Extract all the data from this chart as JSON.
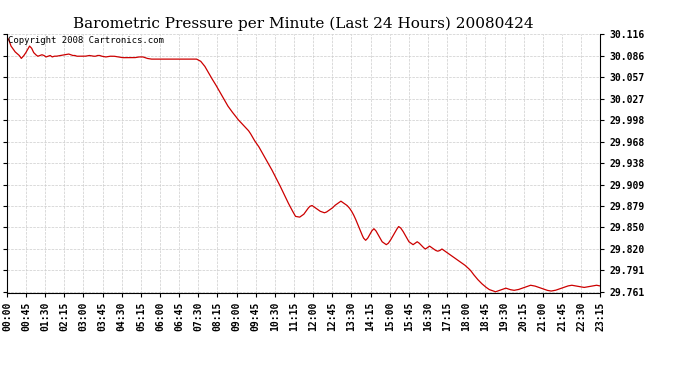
{
  "title": "Barometric Pressure per Minute (Last 24 Hours) 20080424",
  "copyright": "Copyright 2008 Cartronics.com",
  "line_color": "#cc0000",
  "background_color": "#ffffff",
  "grid_color": "#cccccc",
  "yticks": [
    29.761,
    29.791,
    29.82,
    29.85,
    29.879,
    29.909,
    29.938,
    29.968,
    29.998,
    30.027,
    30.057,
    30.086,
    30.116
  ],
  "xtick_labels": [
    "00:00",
    "00:45",
    "01:30",
    "02:15",
    "03:00",
    "03:45",
    "04:30",
    "05:15",
    "06:00",
    "06:45",
    "07:30",
    "08:15",
    "09:00",
    "09:45",
    "10:30",
    "11:15",
    "12:00",
    "12:45",
    "13:30",
    "14:15",
    "15:00",
    "15:45",
    "16:30",
    "17:15",
    "18:00",
    "18:45",
    "19:30",
    "20:15",
    "21:00",
    "21:45",
    "22:30",
    "23:15"
  ],
  "title_fontsize": 11,
  "tick_fontsize": 7,
  "copyright_fontsize": 6.5,
  "keypoints": [
    [
      0,
      30.113
    ],
    [
      5,
      30.108
    ],
    [
      10,
      30.1
    ],
    [
      20,
      30.092
    ],
    [
      30,
      30.087
    ],
    [
      35,
      30.083
    ],
    [
      40,
      30.086
    ],
    [
      45,
      30.09
    ],
    [
      55,
      30.1
    ],
    [
      60,
      30.097
    ],
    [
      65,
      30.091
    ],
    [
      70,
      30.088
    ],
    [
      75,
      30.086
    ],
    [
      80,
      30.087
    ],
    [
      85,
      30.088
    ],
    [
      90,
      30.087
    ],
    [
      95,
      30.085
    ],
    [
      100,
      30.086
    ],
    [
      105,
      30.087
    ],
    [
      110,
      30.085
    ],
    [
      115,
      30.086
    ],
    [
      120,
      30.086
    ],
    [
      130,
      30.087
    ],
    [
      140,
      30.088
    ],
    [
      150,
      30.089
    ],
    [
      155,
      30.088
    ],
    [
      160,
      30.087
    ],
    [
      165,
      30.087
    ],
    [
      170,
      30.086
    ],
    [
      175,
      30.086
    ],
    [
      180,
      30.086
    ],
    [
      190,
      30.086
    ],
    [
      200,
      30.087
    ],
    [
      210,
      30.086
    ],
    [
      215,
      30.086
    ],
    [
      220,
      30.087
    ],
    [
      225,
      30.087
    ],
    [
      230,
      30.086
    ],
    [
      240,
      30.085
    ],
    [
      250,
      30.086
    ],
    [
      260,
      30.086
    ],
    [
      270,
      30.085
    ],
    [
      280,
      30.084
    ],
    [
      290,
      30.084
    ],
    [
      300,
      30.084
    ],
    [
      310,
      30.084
    ],
    [
      320,
      30.085
    ],
    [
      330,
      30.085
    ],
    [
      340,
      30.083
    ],
    [
      350,
      30.082
    ],
    [
      360,
      30.082
    ],
    [
      370,
      30.082
    ],
    [
      380,
      30.082
    ],
    [
      390,
      30.082
    ],
    [
      400,
      30.082
    ],
    [
      410,
      30.082
    ],
    [
      420,
      30.082
    ],
    [
      430,
      30.082
    ],
    [
      440,
      30.082
    ],
    [
      450,
      30.082
    ],
    [
      460,
      30.082
    ],
    [
      470,
      30.079
    ],
    [
      480,
      30.072
    ],
    [
      490,
      30.062
    ],
    [
      495,
      30.057
    ],
    [
      505,
      30.048
    ],
    [
      515,
      30.038
    ],
    [
      525,
      30.028
    ],
    [
      535,
      30.018
    ],
    [
      545,
      30.01
    ],
    [
      555,
      30.003
    ],
    [
      560,
      29.999
    ],
    [
      565,
      29.996
    ],
    [
      570,
      29.993
    ],
    [
      575,
      29.99
    ],
    [
      580,
      29.987
    ],
    [
      585,
      29.984
    ],
    [
      590,
      29.98
    ],
    [
      595,
      29.975
    ],
    [
      600,
      29.97
    ],
    [
      610,
      29.962
    ],
    [
      620,
      29.952
    ],
    [
      630,
      29.942
    ],
    [
      640,
      29.932
    ],
    [
      650,
      29.921
    ],
    [
      660,
      29.91
    ],
    [
      670,
      29.898
    ],
    [
      680,
      29.886
    ],
    [
      690,
      29.875
    ],
    [
      700,
      29.865
    ],
    [
      710,
      29.864
    ],
    [
      715,
      29.866
    ],
    [
      720,
      29.868
    ],
    [
      725,
      29.872
    ],
    [
      730,
      29.876
    ],
    [
      735,
      29.879
    ],
    [
      740,
      29.88
    ],
    [
      745,
      29.878
    ],
    [
      750,
      29.876
    ],
    [
      755,
      29.874
    ],
    [
      760,
      29.872
    ],
    [
      765,
      29.871
    ],
    [
      770,
      29.87
    ],
    [
      775,
      29.871
    ],
    [
      780,
      29.873
    ],
    [
      785,
      29.875
    ],
    [
      790,
      29.877
    ],
    [
      795,
      29.88
    ],
    [
      800,
      29.882
    ],
    [
      805,
      29.884
    ],
    [
      810,
      29.886
    ],
    [
      815,
      29.884
    ],
    [
      820,
      29.882
    ],
    [
      825,
      29.88
    ],
    [
      830,
      29.877
    ],
    [
      835,
      29.873
    ],
    [
      840,
      29.868
    ],
    [
      845,
      29.862
    ],
    [
      850,
      29.855
    ],
    [
      855,
      29.848
    ],
    [
      860,
      29.841
    ],
    [
      865,
      29.835
    ],
    [
      870,
      29.832
    ],
    [
      875,
      29.835
    ],
    [
      880,
      29.84
    ],
    [
      885,
      29.845
    ],
    [
      890,
      29.848
    ],
    [
      895,
      29.845
    ],
    [
      900,
      29.84
    ],
    [
      905,
      29.835
    ],
    [
      910,
      29.83
    ],
    [
      915,
      29.828
    ],
    [
      920,
      29.826
    ],
    [
      925,
      29.828
    ],
    [
      930,
      29.832
    ],
    [
      935,
      29.837
    ],
    [
      940,
      29.842
    ],
    [
      945,
      29.847
    ],
    [
      950,
      29.851
    ],
    [
      955,
      29.849
    ],
    [
      960,
      29.845
    ],
    [
      965,
      29.84
    ],
    [
      970,
      29.835
    ],
    [
      975,
      29.83
    ],
    [
      980,
      29.828
    ],
    [
      985,
      29.826
    ],
    [
      990,
      29.828
    ],
    [
      995,
      29.83
    ],
    [
      1000,
      29.828
    ],
    [
      1005,
      29.825
    ],
    [
      1010,
      29.822
    ],
    [
      1015,
      29.82
    ],
    [
      1020,
      29.822
    ],
    [
      1025,
      29.824
    ],
    [
      1030,
      29.822
    ],
    [
      1035,
      29.82
    ],
    [
      1040,
      29.818
    ],
    [
      1045,
      29.817
    ],
    [
      1050,
      29.818
    ],
    [
      1055,
      29.82
    ],
    [
      1060,
      29.818
    ],
    [
      1065,
      29.816
    ],
    [
      1070,
      29.814
    ],
    [
      1075,
      29.812
    ],
    [
      1080,
      29.81
    ],
    [
      1085,
      29.808
    ],
    [
      1090,
      29.806
    ],
    [
      1095,
      29.804
    ],
    [
      1100,
      29.802
    ],
    [
      1110,
      29.798
    ],
    [
      1120,
      29.793
    ],
    [
      1125,
      29.79
    ],
    [
      1130,
      29.786
    ],
    [
      1140,
      29.779
    ],
    [
      1150,
      29.773
    ],
    [
      1160,
      29.768
    ],
    [
      1170,
      29.764
    ],
    [
      1180,
      29.762
    ],
    [
      1185,
      29.761
    ],
    [
      1190,
      29.762
    ],
    [
      1200,
      29.764
    ],
    [
      1210,
      29.766
    ],
    [
      1215,
      29.765
    ],
    [
      1220,
      29.764
    ],
    [
      1230,
      29.763
    ],
    [
      1240,
      29.764
    ],
    [
      1250,
      29.766
    ],
    [
      1260,
      29.768
    ],
    [
      1270,
      29.77
    ],
    [
      1280,
      29.769
    ],
    [
      1290,
      29.767
    ],
    [
      1300,
      29.765
    ],
    [
      1310,
      29.763
    ],
    [
      1320,
      29.762
    ],
    [
      1330,
      29.763
    ],
    [
      1340,
      29.765
    ],
    [
      1350,
      29.767
    ],
    [
      1360,
      29.769
    ],
    [
      1370,
      29.77
    ],
    [
      1380,
      29.769
    ],
    [
      1390,
      29.768
    ],
    [
      1400,
      29.767
    ],
    [
      1410,
      29.768
    ],
    [
      1420,
      29.769
    ],
    [
      1430,
      29.77
    ],
    [
      1439,
      29.769
    ]
  ]
}
